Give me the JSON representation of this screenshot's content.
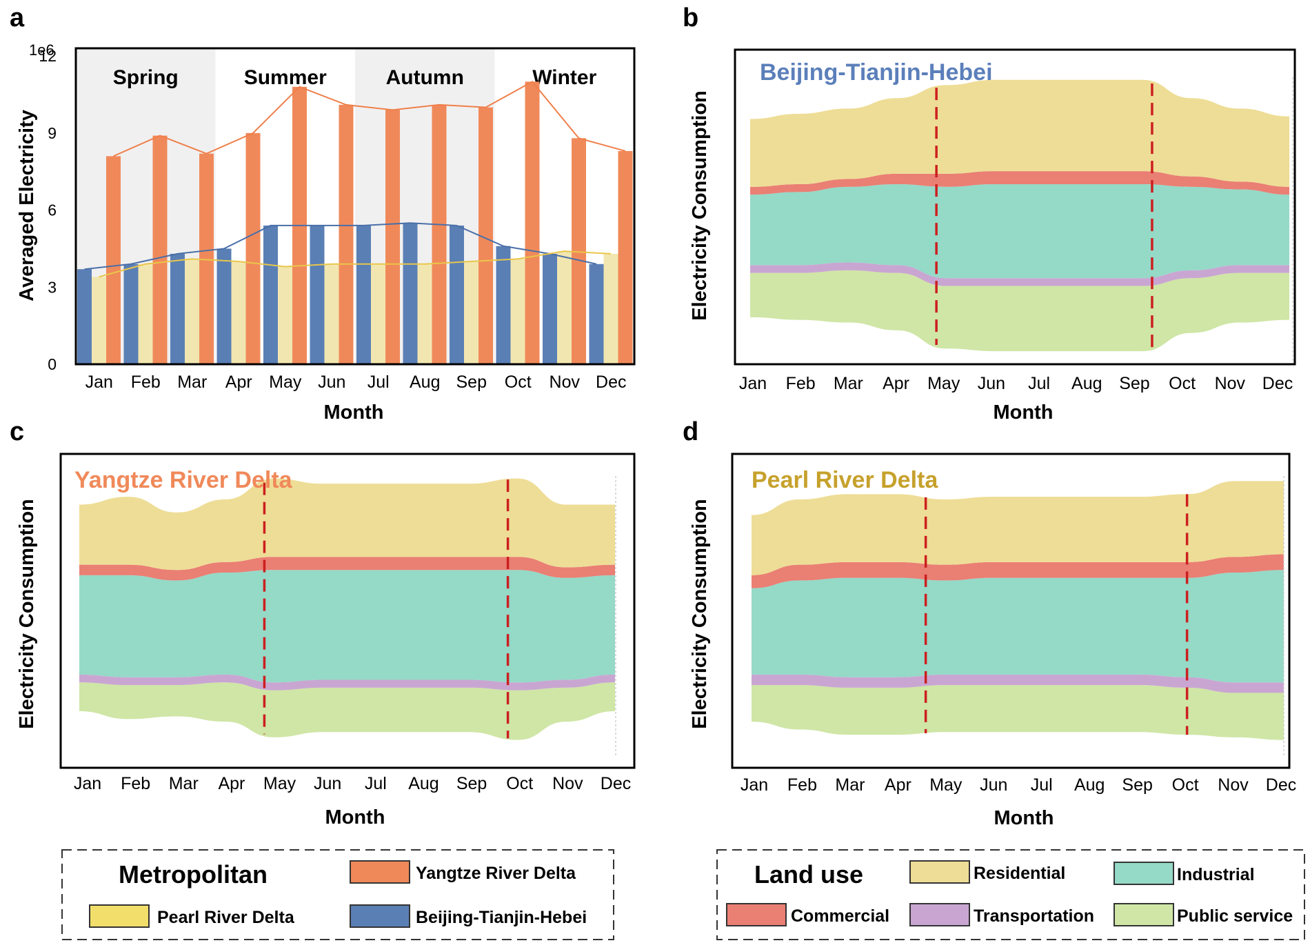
{
  "months": [
    "Jan",
    "Feb",
    "Mar",
    "Apr",
    "May",
    "Jun",
    "Jul",
    "Aug",
    "Sep",
    "Oct",
    "Nov",
    "Dec"
  ],
  "xlabel": "Month",
  "colors": {
    "yrd": "#f0895a",
    "prd": "#f2e6b0",
    "bth": "#5a7fb5",
    "prd_legend": "#f2de6a",
    "residential": "#eedd96",
    "commercial": "#ea7f74",
    "industrial": "#95d9c7",
    "transportation": "#c9a6d2",
    "public_service": "#cfe6a6",
    "dashed": "#cc1f1f",
    "season_shade": "#f0f0f0"
  },
  "chart_data": [
    {
      "panel": "a",
      "type": "bar",
      "ylabel": "Averaged  Electricity",
      "ymultiplier": "1e6",
      "ylim": [
        0,
        12.3
      ],
      "yticks": [
        "0",
        "3",
        "6",
        "9",
        "12"
      ],
      "seasons": [
        "Spring",
        "Summer",
        "Autumn",
        "Winter"
      ],
      "categories": [
        "Jan",
        "Feb",
        "Mar",
        "Apr",
        "May",
        "Jun",
        "Jul",
        "Aug",
        "Sep",
        "Oct",
        "Nov",
        "Dec"
      ],
      "series": [
        {
          "name": "Beijing-Tianjin-Hebei",
          "values": [
            3.7,
            3.9,
            4.3,
            4.5,
            5.4,
            5.4,
            5.4,
            5.5,
            5.4,
            4.6,
            4.3,
            3.9
          ]
        },
        {
          "name": "Pearl River Delta",
          "values": [
            3.4,
            3.9,
            4.1,
            4.0,
            3.8,
            3.9,
            3.9,
            3.9,
            4.0,
            4.1,
            4.4,
            4.3
          ]
        },
        {
          "name": "Yangtze River Delta",
          "values": [
            8.1,
            8.9,
            8.2,
            9.0,
            10.8,
            10.1,
            9.9,
            10.1,
            10.0,
            11.0,
            8.8,
            8.3
          ]
        }
      ]
    },
    {
      "panel": "b",
      "type": "area",
      "title": "Beijing-Tianjin-Hebei",
      "ylabel": "Electricity Consumption",
      "categories": [
        "Jan",
        "Feb",
        "Mar",
        "Apr",
        "May",
        "Jun",
        "Jul",
        "Aug",
        "Sep",
        "Oct",
        "Nov",
        "Dec"
      ],
      "baseline": [
        1.8,
        1.7,
        1.6,
        1.3,
        0.6,
        0.5,
        0.5,
        0.5,
        0.5,
        1.2,
        1.6,
        1.7
      ],
      "series": [
        {
          "name": "Public service",
          "values": [
            1.7,
            1.8,
            2.0,
            2.2,
            2.4,
            2.5,
            2.5,
            2.5,
            2.5,
            2.1,
            1.9,
            1.8
          ]
        },
        {
          "name": "Transportation",
          "values": [
            0.3,
            0.3,
            0.3,
            0.3,
            0.3,
            0.3,
            0.3,
            0.3,
            0.3,
            0.3,
            0.3,
            0.3
          ]
        },
        {
          "name": "Industrial",
          "values": [
            2.7,
            2.8,
            2.9,
            3.1,
            3.5,
            3.6,
            3.6,
            3.6,
            3.6,
            3.2,
            2.9,
            2.7
          ]
        },
        {
          "name": "Commercial",
          "values": [
            0.3,
            0.3,
            0.3,
            0.4,
            0.5,
            0.5,
            0.5,
            0.5,
            0.5,
            0.4,
            0.3,
            0.3
          ]
        },
        {
          "name": "Residential",
          "values": [
            2.6,
            2.7,
            2.7,
            2.9,
            3.4,
            3.5,
            3.5,
            3.5,
            3.5,
            3.0,
            2.8,
            2.7
          ]
        }
      ],
      "dashed_at": [
        3.8,
        8.2
      ]
    },
    {
      "panel": "c",
      "type": "area",
      "title": "Yangtze River Delta",
      "ylabel": "Electricity Consumption",
      "categories": [
        "Jan",
        "Feb",
        "Mar",
        "Apr",
        "May",
        "Jun",
        "Jul",
        "Aug",
        "Sep",
        "Oct",
        "Nov",
        "Dec"
      ],
      "baseline": [
        1.9,
        1.6,
        1.7,
        1.5,
        0.9,
        1.1,
        1.1,
        1.1,
        1.1,
        0.8,
        1.5,
        1.9
      ],
      "series": [
        {
          "name": "Public service",
          "values": [
            1.1,
            1.3,
            1.2,
            1.5,
            1.8,
            1.7,
            1.7,
            1.7,
            1.7,
            1.9,
            1.3,
            1.1
          ]
        },
        {
          "name": "Transportation",
          "values": [
            0.3,
            0.3,
            0.3,
            0.3,
            0.3,
            0.3,
            0.3,
            0.3,
            0.3,
            0.3,
            0.3,
            0.3
          ]
        },
        {
          "name": "Industrial",
          "values": [
            3.8,
            3.9,
            3.7,
            3.9,
            4.3,
            4.2,
            4.2,
            4.2,
            4.2,
            4.3,
            3.9,
            3.8
          ]
        },
        {
          "name": "Commercial",
          "values": [
            0.4,
            0.4,
            0.4,
            0.4,
            0.5,
            0.5,
            0.5,
            0.5,
            0.5,
            0.5,
            0.4,
            0.4
          ]
        },
        {
          "name": "Residential",
          "values": [
            2.3,
            2.6,
            2.2,
            2.4,
            3.0,
            2.8,
            2.8,
            2.8,
            2.8,
            3.0,
            2.4,
            2.3
          ]
        }
      ],
      "dashed_at": [
        3.8,
        8.8
      ]
    },
    {
      "panel": "d",
      "type": "area",
      "title": "Pearl River Delta",
      "ylabel": "Electricity Consumption",
      "categories": [
        "Jan",
        "Feb",
        "Mar",
        "Apr",
        "May",
        "Jun",
        "Jul",
        "Aug",
        "Sep",
        "Oct",
        "Nov",
        "Dec"
      ],
      "baseline": [
        1.5,
        1.2,
        1.0,
        1.0,
        1.1,
        1.1,
        1.1,
        1.1,
        1.1,
        1.0,
        0.9,
        0.8
      ],
      "series": [
        {
          "name": "Public service",
          "values": [
            1.4,
            1.7,
            1.8,
            1.8,
            1.8,
            1.8,
            1.8,
            1.8,
            1.8,
            1.8,
            1.7,
            1.8
          ]
        },
        {
          "name": "Transportation",
          "values": [
            0.4,
            0.4,
            0.4,
            0.4,
            0.4,
            0.4,
            0.4,
            0.4,
            0.4,
            0.4,
            0.4,
            0.4
          ]
        },
        {
          "name": "Industrial",
          "values": [
            3.3,
            3.6,
            3.8,
            3.8,
            3.6,
            3.7,
            3.7,
            3.7,
            3.7,
            3.8,
            4.2,
            4.3
          ]
        },
        {
          "name": "Commercial",
          "values": [
            0.5,
            0.6,
            0.6,
            0.6,
            0.6,
            0.6,
            0.6,
            0.6,
            0.6,
            0.6,
            0.6,
            0.6
          ]
        },
        {
          "name": "Residential",
          "values": [
            2.3,
            2.5,
            2.6,
            2.6,
            2.5,
            2.5,
            2.5,
            2.5,
            2.5,
            2.6,
            2.9,
            2.8
          ]
        }
      ],
      "dashed_at": [
        3.6,
        9.0
      ]
    }
  ],
  "legend_metropolitan": {
    "title": "Metropolitan",
    "items": [
      "Yangtze River Delta",
      "Pearl River Delta",
      "Beijing-Tianjin-Hebei"
    ]
  },
  "legend_landuse": {
    "title": "Land use",
    "items": [
      "Residential",
      "Industrial",
      "Commercial",
      "Transportation",
      "Public service"
    ]
  }
}
